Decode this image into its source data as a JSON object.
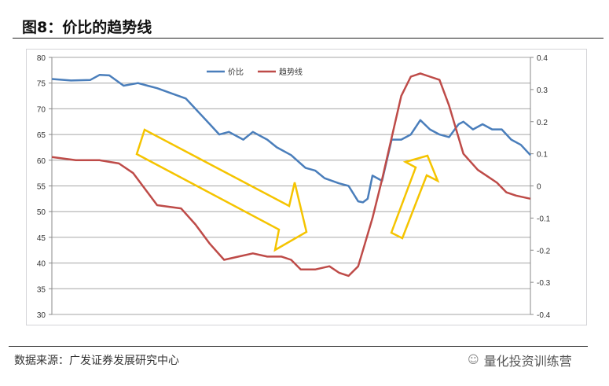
{
  "title": "图8：价比的趋势线",
  "source": "数据来源：广发证券发展研究中心",
  "watermark": "量化投资训练营",
  "chart_data": {
    "type": "line",
    "title": "",
    "legend_position": "top-right",
    "left_axis": {
      "ylim": [
        30,
        80
      ],
      "ticks": [
        "30",
        "35",
        "40",
        "45",
        "50",
        "55",
        "60",
        "65",
        "70",
        "75",
        "80"
      ]
    },
    "right_axis": {
      "ylim": [
        -0.4,
        0.4
      ],
      "ticks": [
        "-0.4",
        "-0.3",
        "-0.2",
        "-0.1",
        "0",
        "0.1",
        "0.2",
        "0.3",
        "0.4"
      ]
    },
    "x_range": [
      0,
      100
    ],
    "series": [
      {
        "name": "价比",
        "axis": "left",
        "color": "#4a7ebb",
        "x": [
          0,
          4,
          8,
          10,
          12,
          15,
          18,
          20,
          22,
          25,
          28,
          30,
          33,
          35,
          37,
          40,
          42,
          45,
          47,
          50,
          53,
          55,
          57,
          60,
          62,
          64,
          65,
          66,
          67,
          69,
          71,
          73,
          75,
          77,
          79,
          81,
          83,
          85,
          86,
          88,
          90,
          92,
          94,
          96,
          98,
          100
        ],
        "y": [
          75.8,
          75.5,
          75.6,
          76.6,
          76.5,
          74.5,
          75,
          74.5,
          74,
          73,
          72,
          70,
          67,
          65,
          65.5,
          64,
          65.5,
          64,
          62.5,
          61,
          58.5,
          58,
          56.5,
          55.5,
          55,
          52,
          51.8,
          52.5,
          57,
          56,
          64,
          64,
          65,
          67.8,
          66,
          65,
          64.5,
          67,
          67.5,
          66,
          67,
          66,
          66,
          64,
          63,
          61
        ]
      },
      {
        "name": "趋势线",
        "axis": "right",
        "color": "#be4b48",
        "x": [
          0,
          5,
          10,
          14,
          17,
          22,
          27,
          30,
          33,
          36,
          39,
          42,
          45,
          48,
          50,
          52,
          55,
          58,
          60,
          62,
          64,
          65,
          67,
          69,
          71,
          73,
          75,
          77,
          79,
          81,
          83,
          86,
          89,
          91,
          93,
          95,
          97,
          100
        ],
        "y": [
          0.09,
          0.08,
          0.08,
          0.07,
          0.04,
          -0.06,
          -0.07,
          -0.12,
          -0.18,
          -0.23,
          -0.22,
          -0.21,
          -0.22,
          -0.22,
          -0.23,
          -0.26,
          -0.26,
          -0.25,
          -0.27,
          -0.28,
          -0.25,
          -0.2,
          -0.1,
          0.02,
          0.15,
          0.28,
          0.34,
          0.35,
          0.34,
          0.33,
          0.25,
          0.1,
          0.05,
          0.03,
          0.01,
          -0.02,
          -0.03,
          -0.04
        ]
      }
    ]
  }
}
